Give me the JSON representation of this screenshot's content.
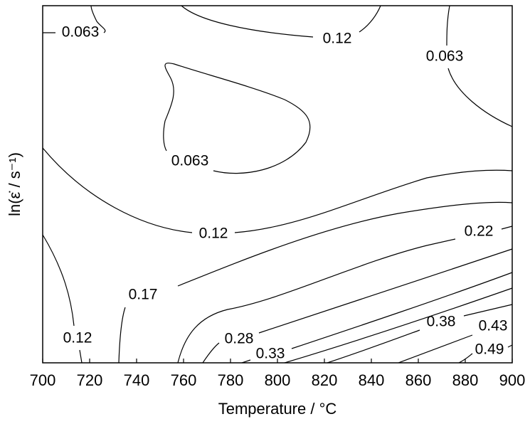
{
  "chart_data": {
    "type": "contour",
    "x_label": "Temperature / °C",
    "y_label": "ln(ε̇ / s⁻¹)",
    "xlim": [
      700,
      900
    ],
    "xticks": [
      700,
      720,
      740,
      760,
      780,
      800,
      820,
      840,
      860,
      880,
      900
    ],
    "contours": [
      {
        "level": 0.063
      },
      {
        "level": 0.12
      },
      {
        "level": 0.063
      },
      {
        "level": 0.063
      },
      {
        "level": 0.12
      },
      {
        "level": 0.12
      },
      {
        "level": 0.17
      },
      {
        "level": 0.22
      },
      {
        "level": 0.28
      },
      {
        "level": 0.33
      },
      {
        "level": 0.38
      },
      {
        "level": 0.43
      },
      {
        "level": 0.49
      }
    ]
  }
}
